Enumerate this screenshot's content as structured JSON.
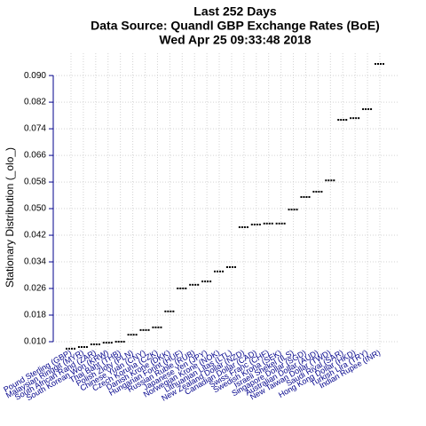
{
  "chart_data": {
    "type": "dash",
    "title": [
      "Last 252 Days",
      "Data Source: Quandl GBP Exchange Rates (BoE)",
      "Wed Apr 25 09:33:48 2018"
    ],
    "y_label": "Stationary Distribution (_olo_)",
    "categories": [
      "Pound Sterling (GBP)",
      "Malaysian Ringgit (MYR)",
      "South African Rand (ZAR)",
      "South Korean Won (KRW)",
      "Thai Baht (THB)",
      "Polish Zloty (PLN)",
      "Chinese Yuan (CNY)",
      "Czech Koruna (CZK)",
      "Danish Krone (DKK)",
      "Hungarian Forint (HUF)",
      "Russian Ruble (RUB)",
      "Japanese Yen (JPY)",
      "Norwegian Krone (NOK)",
      "Lithuanian Litas (LTL)",
      "New Zealand Dollar (NZD)",
      "Canadian Dollar (CAD)",
      "Swiss Franc (CHF)",
      "Swedish Krona (SEK)",
      "Israeli Shekel (ILS)",
      "Singapore Dollar (SGD)",
      "Australian Dollar (AUD)",
      "New Taiwan Dollar (TWD)",
      "Saudi Riyal (SAR)",
      "Hong Kong Dollar (HKD)",
      "Turkish Lira (TRY)",
      "Indian Rupee (INR)"
    ],
    "values": [
      0.0079,
      0.0084,
      0.0092,
      0.0097,
      0.01,
      0.0121,
      0.0135,
      0.0143,
      0.0191,
      0.026,
      0.0271,
      0.0281,
      0.0311,
      0.0324,
      0.0444,
      0.0452,
      0.0455,
      0.0455,
      0.0497,
      0.0535,
      0.0551,
      0.0585,
      0.0767,
      0.0772,
      0.0799,
      0.0935
    ],
    "color": "#000000",
    "label_color": "#00008b",
    "ylim": [
      0.006,
      0.0967
    ],
    "yticks": [
      {
        "value": 0.01,
        "label": "0.010"
      },
      {
        "value": 0.018,
        "label": "0.018"
      },
      {
        "value": 0.026,
        "label": "0.026"
      },
      {
        "value": 0.034,
        "label": "0.034"
      },
      {
        "value": 0.042,
        "label": "0.042"
      },
      {
        "value": 0.05,
        "label": "0.050"
      },
      {
        "value": 0.058,
        "label": "0.058"
      },
      {
        "value": 0.066,
        "label": "0.066"
      },
      {
        "value": 0.074,
        "label": "0.074"
      },
      {
        "value": 0.082,
        "label": "0.082"
      },
      {
        "value": 0.09,
        "label": "0.090"
      }
    ],
    "grid": true
  }
}
